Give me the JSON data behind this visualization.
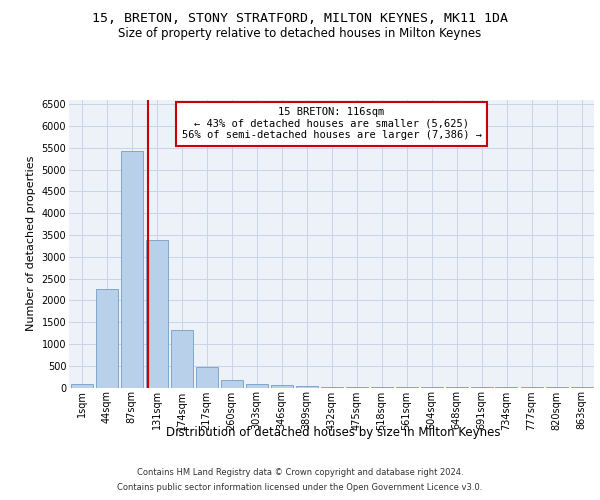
{
  "title1": "15, BRETON, STONY STRATFORD, MILTON KEYNES, MK11 1DA",
  "title2": "Size of property relative to detached houses in Milton Keynes",
  "xlabel": "Distribution of detached houses by size in Milton Keynes",
  "ylabel": "Number of detached properties",
  "footer1": "Contains HM Land Registry data © Crown copyright and database right 2024.",
  "footer2": "Contains public sector information licensed under the Open Government Licence v3.0.",
  "annotation_line1": "15 BRETON: 116sqm",
  "annotation_line2": "← 43% of detached houses are smaller (5,625)",
  "annotation_line3": "56% of semi-detached houses are larger (7,386) →",
  "bar_color": "#b8d0ea",
  "bar_edge_color": "#6090c0",
  "grid_color": "#c8d4e8",
  "redline_color": "#cc0000",
  "bg_color": "#edf2f9",
  "categories": [
    "1sqm",
    "44sqm",
    "87sqm",
    "131sqm",
    "174sqm",
    "217sqm",
    "260sqm",
    "303sqm",
    "346sqm",
    "389sqm",
    "432sqm",
    "475sqm",
    "518sqm",
    "561sqm",
    "604sqm",
    "648sqm",
    "691sqm",
    "734sqm",
    "777sqm",
    "820sqm",
    "863sqm"
  ],
  "values": [
    70,
    2270,
    5430,
    3380,
    1310,
    480,
    165,
    90,
    55,
    30,
    20,
    12,
    8,
    5,
    4,
    3,
    2,
    2,
    1,
    1,
    1
  ],
  "ylim": [
    0,
    6600
  ],
  "yticks": [
    0,
    500,
    1000,
    1500,
    2000,
    2500,
    3000,
    3500,
    4000,
    4500,
    5000,
    5500,
    6000,
    6500
  ],
  "redline_x": 2.66,
  "title1_fontsize": 9.5,
  "title2_fontsize": 8.5,
  "xlabel_fontsize": 8.5,
  "ylabel_fontsize": 8.0,
  "tick_fontsize": 7.0,
  "footer_fontsize": 6.0,
  "annot_fontsize": 7.5
}
